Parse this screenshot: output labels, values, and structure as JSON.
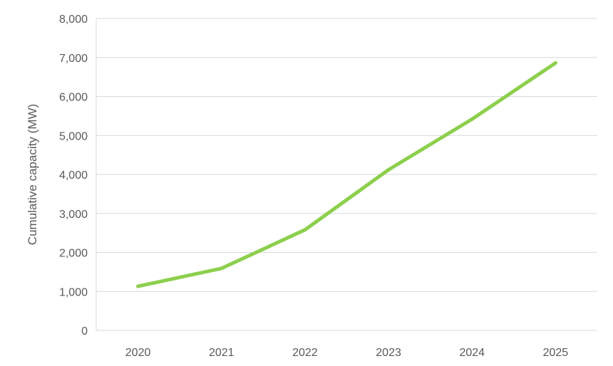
{
  "chart_data": {
    "type": "line",
    "title": "",
    "xlabel": "",
    "ylabel": "Cumulative capacity (MW)",
    "categories": [
      "2020",
      "2021",
      "2022",
      "2023",
      "2024",
      "2025"
    ],
    "series": [
      {
        "values": [
          1130,
          1590,
          2580,
          4120,
          5420,
          6860
        ],
        "color": "#8ccf4d"
      }
    ],
    "y_ticks": [
      "0",
      "1,000",
      "2,000",
      "3,000",
      "4,000",
      "5,000",
      "6,000",
      "7,000",
      "8,000"
    ],
    "ylim": [
      0,
      8000
    ],
    "y_step": 1000,
    "grid": "horizontal",
    "legend": "none",
    "colors": {
      "grid": "#d9d9d9",
      "text": "#595959"
    }
  }
}
